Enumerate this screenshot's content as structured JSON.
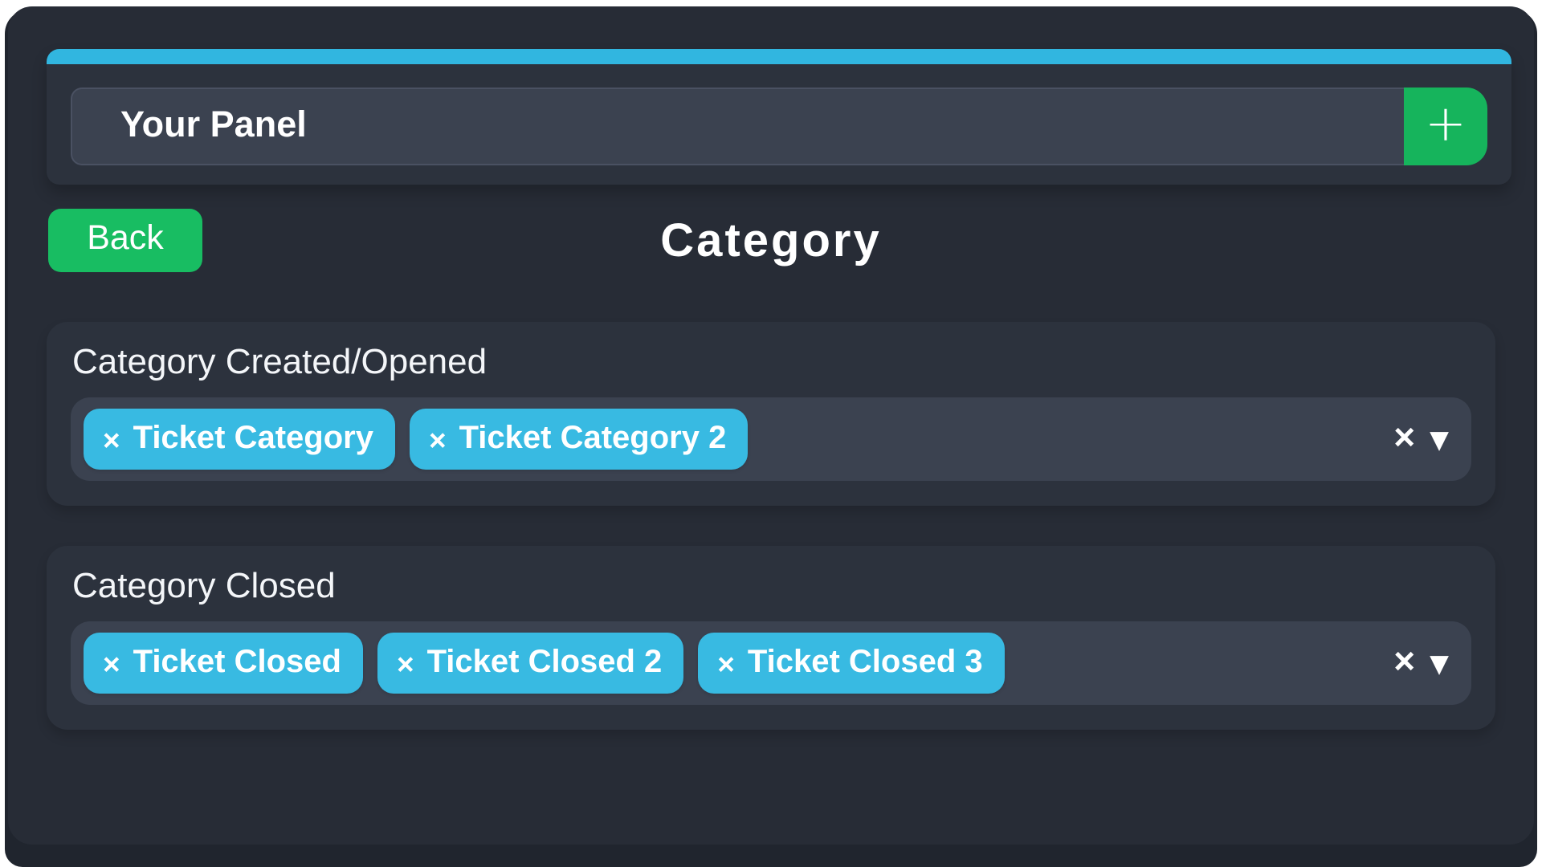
{
  "colors": {
    "page_bg": "#ffffff",
    "frame": "#20252e",
    "panel": "#272c36",
    "card": "#2c323d",
    "field": "#3b4250",
    "field_border": "#4a5162",
    "accent_cyan": "#31b6e0",
    "pill_cyan": "#38bae2",
    "green_add": "#16b45c",
    "green_back": "#18bd62",
    "text": "#ffffff"
  },
  "header": {
    "panel_title_value": "Your Panel",
    "add_button_label": "+"
  },
  "nav": {
    "back_label": "Back",
    "page_title": "Category"
  },
  "icons": {
    "remove_tag": "×",
    "clear_all": "×",
    "dropdown_caret": "▼"
  },
  "sections": [
    {
      "heading": "Category Created/Opened",
      "tags": [
        "Ticket Category",
        "Ticket Category 2"
      ]
    },
    {
      "heading": "Category Closed",
      "tags": [
        "Ticket Closed",
        "Ticket Closed 2",
        "Ticket Closed 3"
      ]
    }
  ]
}
